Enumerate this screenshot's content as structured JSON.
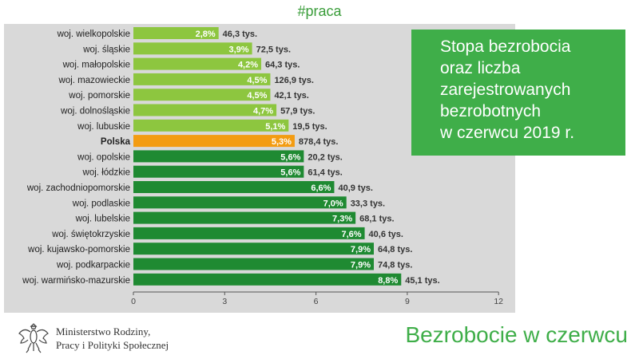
{
  "header": {
    "hashtag": "#praca"
  },
  "info_box": {
    "lines": [
      "Stopa bezrobocia",
      "oraz liczba",
      "zarejestrowanych",
      "bezrobotnych",
      "w czerwcu 2019 r."
    ]
  },
  "footer": {
    "title": "Bezrobocie w czerwcu",
    "ministry_lines": [
      "Ministerstwo Rodziny,",
      "Pracy i Polityki Społecznej"
    ]
  },
  "colors": {
    "light_green": "#8dc63f",
    "orange": "#f39c12",
    "dark_green": "#1f8a32",
    "panel": "#d9d9d9",
    "box_green": "#3fae49"
  },
  "chart_data": {
    "type": "bar",
    "orientation": "horizontal",
    "title": "",
    "xlabel": "",
    "ylabel": "",
    "xlim": [
      0,
      12
    ],
    "ticks": [
      0,
      3,
      6,
      9,
      12
    ],
    "grid": false,
    "categories": [
      "woj. wielkopolskie",
      "woj. śląskie",
      "woj. małopolskie",
      "woj. mazowieckie",
      "woj. pomorskie",
      "woj. dolnośląskie",
      "woj. lubuskie",
      "Polska",
      "woj. opolskie",
      "woj. łódzkie",
      "woj. zachodniopomorskie",
      "woj. podlaskie",
      "woj. lubelskie",
      "woj. świętokrzyskie",
      "woj. kujawsko-pomorskie",
      "woj. podkarpackie",
      "woj. warmińsko-mazurskie"
    ],
    "values": [
      2.8,
      3.9,
      4.2,
      4.5,
      4.5,
      4.7,
      5.1,
      5.3,
      5.6,
      5.6,
      6.6,
      7.0,
      7.3,
      7.6,
      7.9,
      7.9,
      8.8
    ],
    "value_labels": [
      "2,8%",
      "3,9%",
      "4,2%",
      "4,5%",
      "4,5%",
      "4,7%",
      "5,1%",
      "5,3%",
      "5,6%",
      "5,6%",
      "6,6%",
      "7,0%",
      "7,3%",
      "7,6%",
      "7,9%",
      "7,9%",
      "8,8%"
    ],
    "count_labels": [
      "46,3 tys.",
      "72,5 tys.",
      "64,3 tys.",
      "126,9 tys.",
      "42,1 tys.",
      "57,9 tys.",
      "19,5 tys.",
      "878,4 tys.",
      "20,2 tys.",
      "61,4 tys.",
      "40,9 tys.",
      "33,3 tys.",
      "68,1 tys.",
      "40,6 tys.",
      "64,8 tys.",
      "74,8 tys.",
      "45,1 tys."
    ],
    "counts_thousands": [
      46.3,
      72.5,
      64.3,
      126.9,
      42.1,
      57.9,
      19.5,
      878.4,
      20.2,
      61.4,
      40.9,
      33.3,
      68.1,
      40.6,
      64.8,
      74.8,
      45.1
    ],
    "bar_color_groups": [
      "light",
      "light",
      "light",
      "light",
      "light",
      "light",
      "light",
      "highlight",
      "dark",
      "dark",
      "dark",
      "dark",
      "dark",
      "dark",
      "dark",
      "dark",
      "dark"
    ]
  }
}
